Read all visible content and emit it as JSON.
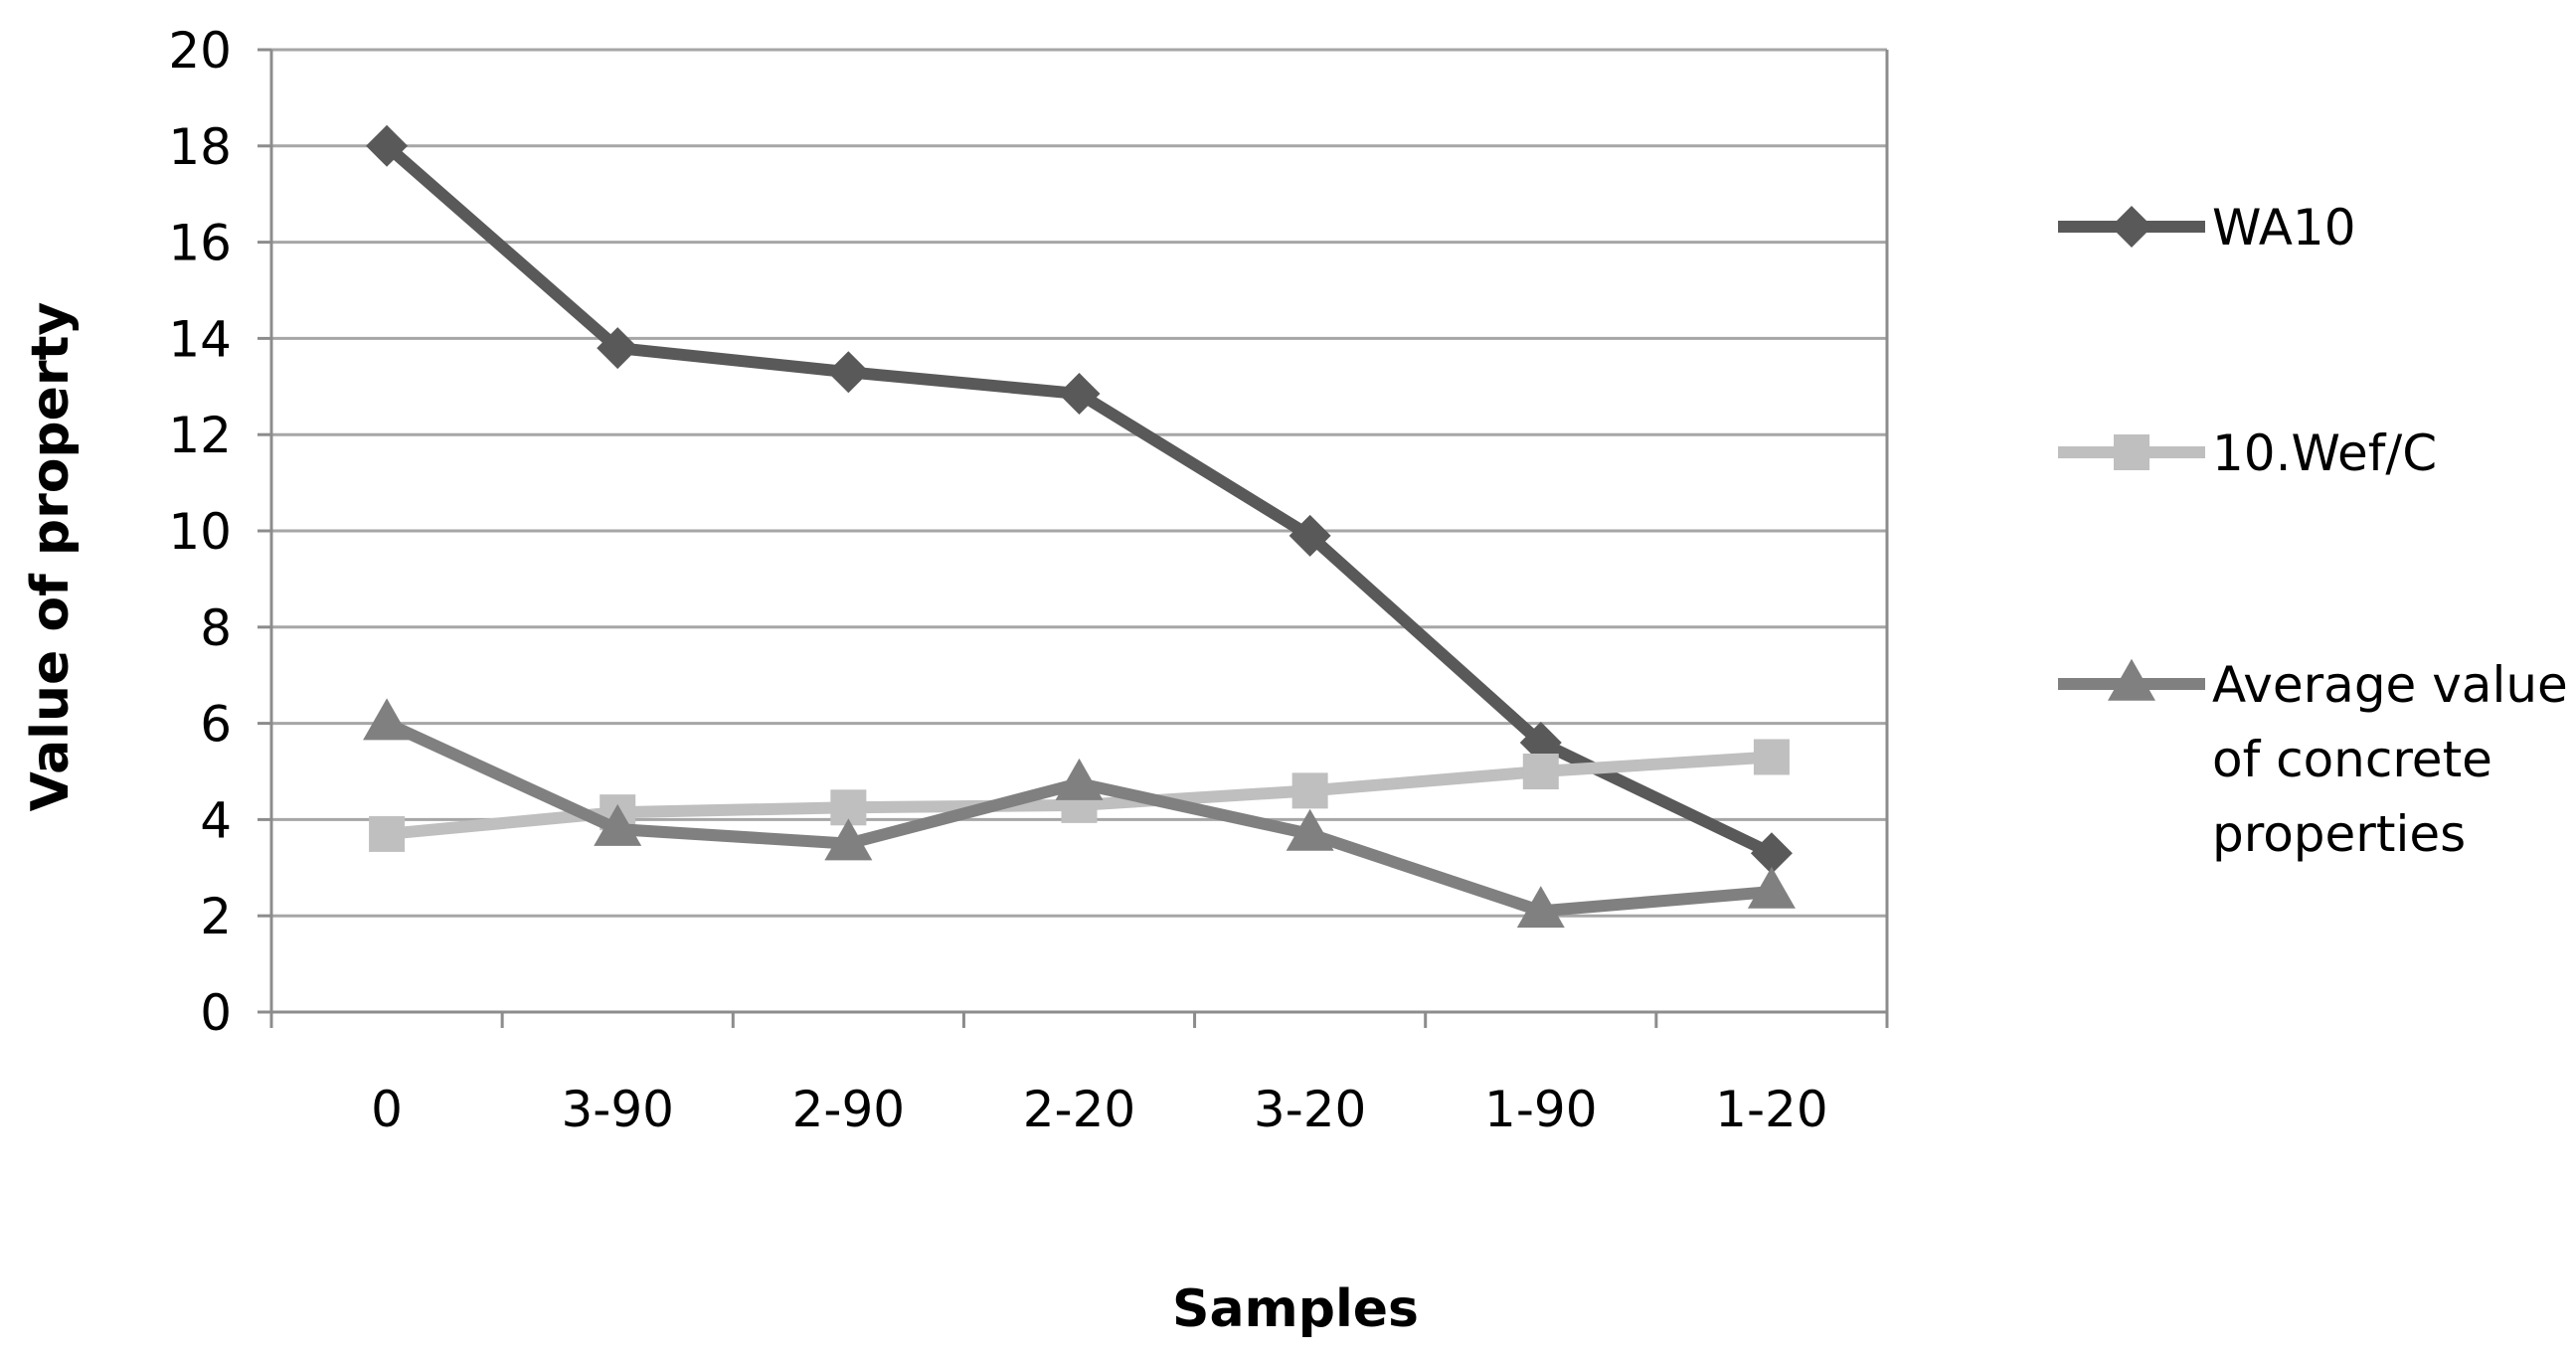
{
  "chart_data": {
    "type": "line",
    "categories": [
      "0",
      "3-90",
      "2-90",
      "2-20",
      "3-20",
      "1-90",
      "1-20"
    ],
    "series": [
      {
        "name": "WA10",
        "values": [
          18.0,
          13.8,
          13.3,
          12.85,
          9.9,
          5.6,
          3.3
        ],
        "color": "#595959",
        "marker": "diamond"
      },
      {
        "name": "10.Wef/C",
        "values": [
          3.7,
          4.15,
          4.25,
          4.3,
          4.6,
          5.0,
          5.3
        ],
        "color": "#bfbfbf",
        "marker": "square"
      },
      {
        "name_lines": [
          "Average value",
          "of concrete",
          "properties"
        ],
        "values": [
          6.0,
          3.8,
          3.5,
          4.75,
          3.7,
          2.1,
          2.5
        ],
        "color": "#808080",
        "marker": "triangle"
      }
    ],
    "xlabel": "Samples",
    "ylabel": "Value of property",
    "ylim": [
      0,
      20
    ],
    "yticks": [
      "0",
      "2",
      "4",
      "6",
      "8",
      "10",
      "12",
      "14",
      "16",
      "18",
      "20"
    ],
    "grid": true,
    "legend": "right"
  }
}
